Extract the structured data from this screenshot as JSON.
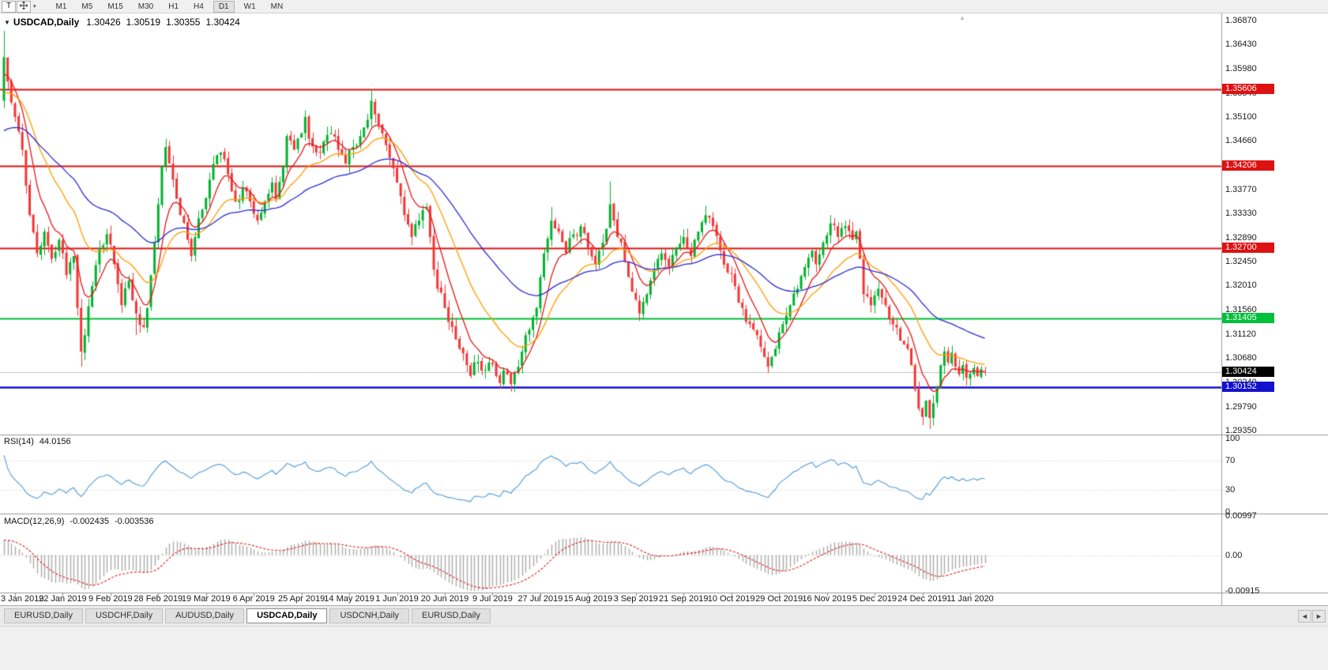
{
  "toolbar": {
    "template_button": "T",
    "timeframes": [
      "M1",
      "M5",
      "M15",
      "M30",
      "H1",
      "H4",
      "D1",
      "W1",
      "MN"
    ],
    "active_timeframe": "D1"
  },
  "icons": {
    "collapse": "▼",
    "dropdown": "▾",
    "shift_marker": "▲",
    "tab_prev": "◄",
    "tab_next": "►"
  },
  "chart": {
    "symbol": "USDCAD,Daily",
    "open": "1.30426",
    "high": "1.30519",
    "low": "1.30355",
    "close": "1.30424",
    "current_price": "1.30424",
    "y_axis_labels": [
      "1.36870",
      "1.36430",
      "1.35980",
      "1.35540",
      "1.35100",
      "1.34660",
      "1.34220",
      "1.33770",
      "1.33330",
      "1.32890",
      "1.32450",
      "1.32010",
      "1.31560",
      "1.31120",
      "1.30680",
      "1.30240",
      "1.29790",
      "1.29350"
    ],
    "levels": [
      {
        "value": "1.35606",
        "v": 1.35606,
        "color": "#dd1212",
        "lw": 1.8
      },
      {
        "value": "1.34206",
        "v": 1.34206,
        "color": "#dd1212",
        "lw": 1.8
      },
      {
        "value": "1.32700",
        "v": 1.327,
        "color": "#dd1212",
        "lw": 1.8
      },
      {
        "value": "1.31405",
        "v": 1.31405,
        "color": "#00c03a",
        "lw": 1.8
      },
      {
        "value": "1.30152",
        "v": 1.30152,
        "color": "#1212cc",
        "lw": 2.6
      }
    ]
  },
  "rsi": {
    "label": "RSI(14)",
    "value": "44.0156",
    "period": 14,
    "range": [
      0,
      100
    ],
    "axis_labels": [
      "100",
      "70",
      "30",
      "0"
    ],
    "dotted_levels": [
      70,
      30
    ]
  },
  "macd": {
    "label": "MACD(12,26,9)",
    "value": "-0.002435",
    "signal": "-0.003536",
    "range": [
      -0.00915,
      0.00997
    ],
    "axis_labels": [
      {
        "text": "0.00997",
        "v": 0.00997
      },
      {
        "text": "0.00",
        "v": 0
      },
      {
        "text": "-0.00915",
        "v": -0.00915
      }
    ]
  },
  "x_axis_dates": [
    "3 Jan 2019",
    "22 Jan 2019",
    "9 Feb 2019",
    "28 Feb 2019",
    "19 Mar 2019",
    "6 Apr 2019",
    "25 Apr 2019",
    "14 May 2019",
    "1 Jun 2019",
    "20 Jun 2019",
    "9 Jul 2019",
    "27 Jul 2019",
    "15 Aug 2019",
    "3 Sep 2019",
    "21 Sep 2019",
    "10 Oct 2019",
    "29 Oct 2019",
    "16 Nov 2019",
    "5 Dec 2019",
    "24 Dec 2019",
    "11 Jan 2020"
  ],
  "tabs": [
    {
      "label": "EURUSD,Daily",
      "active": false
    },
    {
      "label": "USDCHF,Daily",
      "active": false
    },
    {
      "label": "AUDUSD,Daily",
      "active": false
    },
    {
      "label": "USDCAD,Daily",
      "active": true
    },
    {
      "label": "USDCNH,Daily",
      "active": false
    },
    {
      "label": "EURUSD,Daily",
      "active": false
    }
  ],
  "colors": {
    "candle_up": "#00b22d",
    "candle_down": "#f43535",
    "current_price_line": "#c4c4c4",
    "current_badge": "#000000",
    "rsi_line": "#4f9bd8",
    "macd_histogram": "#ababab",
    "macd_signal": "#e02020",
    "panel_border": "#9a9a9a",
    "grid_dotted": "#c8c8c8"
  },
  "chart_data": {
    "type": "candlestick",
    "symbol": "USDCAD",
    "timeframe": "Daily",
    "bars": 268,
    "y_range": {
      "top": 1.37,
      "bottom": 1.29277
    },
    "last_candle": {
      "open": 1.30426,
      "high": 1.30519,
      "low": 1.30355,
      "close": 1.30424
    },
    "horizontal_levels": [
      1.35606,
      1.34206,
      1.327,
      1.31405,
      1.30152
    ],
    "moving_averages": [
      {
        "name": "fast",
        "period": 8,
        "color": "#e81717"
      },
      {
        "name": "medium",
        "period": 21,
        "color": "#ff9c00"
      },
      {
        "name": "slow",
        "period": 50,
        "color": "#2b2bd4"
      }
    ],
    "rsi": {
      "period": 14,
      "current": 44.0156
    },
    "macd": {
      "fast": 12,
      "slow": 26,
      "signal": 9,
      "current_main": -0.002435,
      "current_signal": -0.003536
    },
    "price_anchors": [
      [
        0,
        1.362
      ],
      [
        1,
        1.3575
      ],
      [
        3,
        1.351
      ],
      [
        5,
        1.345
      ],
      [
        7,
        1.333
      ],
      [
        9,
        1.326
      ],
      [
        11,
        1.33
      ],
      [
        13,
        1.325
      ],
      [
        15,
        1.3285
      ],
      [
        17,
        1.322
      ],
      [
        19,
        1.3255
      ],
      [
        20,
        1.316
      ],
      [
        21,
        1.308
      ],
      [
        22,
        1.311
      ],
      [
        24,
        1.32
      ],
      [
        26,
        1.327
      ],
      [
        28,
        1.3295
      ],
      [
        30,
        1.324
      ],
      [
        32,
        1.3165
      ],
      [
        34,
        1.321
      ],
      [
        36,
        1.315
      ],
      [
        38,
        1.3125
      ],
      [
        39,
        1.316
      ],
      [
        40,
        1.322
      ],
      [
        41,
        1.328
      ],
      [
        42,
        1.335
      ],
      [
        43,
        1.342
      ],
      [
        44,
        1.3455
      ],
      [
        45,
        1.3425
      ],
      [
        46,
        1.3395
      ],
      [
        47,
        1.336
      ],
      [
        48,
        1.333
      ],
      [
        50,
        1.3285
      ],
      [
        51,
        1.3255
      ],
      [
        52,
        1.329
      ],
      [
        54,
        1.334
      ],
      [
        56,
        1.3395
      ],
      [
        58,
        1.344
      ],
      [
        59,
        1.3445
      ],
      [
        61,
        1.3405
      ],
      [
        63,
        1.3355
      ],
      [
        65,
        1.338
      ],
      [
        67,
        1.3355
      ],
      [
        69,
        1.332
      ],
      [
        71,
        1.3355
      ],
      [
        73,
        1.339
      ],
      [
        74,
        1.336
      ],
      [
        76,
        1.342
      ],
      [
        77,
        1.3475
      ],
      [
        79,
        1.345
      ],
      [
        81,
        1.348
      ],
      [
        82,
        1.351
      ],
      [
        83,
        1.347
      ],
      [
        85,
        1.3445
      ],
      [
        87,
        1.3465
      ],
      [
        89,
        1.348
      ],
      [
        91,
        1.345
      ],
      [
        93,
        1.3425
      ],
      [
        95,
        1.3455
      ],
      [
        97,
        1.3475
      ],
      [
        99,
        1.3505
      ],
      [
        100,
        1.354
      ],
      [
        101,
        1.3515
      ],
      [
        103,
        1.348
      ],
      [
        105,
        1.3435
      ],
      [
        107,
        1.339
      ],
      [
        109,
        1.333
      ],
      [
        111,
        1.329
      ],
      [
        113,
        1.332
      ],
      [
        115,
        1.3345
      ],
      [
        116,
        1.329
      ],
      [
        117,
        1.323
      ],
      [
        118,
        1.3195
      ],
      [
        120,
        1.316
      ],
      [
        122,
        1.3125
      ],
      [
        124,
        1.3085
      ],
      [
        126,
        1.3055
      ],
      [
        127,
        1.3035
      ],
      [
        128,
        1.306
      ],
      [
        130,
        1.3045
      ],
      [
        132,
        1.306
      ],
      [
        134,
        1.3035
      ],
      [
        135,
        1.3022
      ],
      [
        136,
        1.3045
      ],
      [
        138,
        1.302
      ],
      [
        139,
        1.304
      ],
      [
        141,
        1.308
      ],
      [
        143,
        1.312
      ],
      [
        145,
        1.316
      ],
      [
        147,
        1.326
      ],
      [
        149,
        1.332
      ],
      [
        151,
        1.33
      ],
      [
        153,
        1.326
      ],
      [
        155,
        1.3295
      ],
      [
        157,
        1.331
      ],
      [
        159,
        1.327
      ],
      [
        161,
        1.324
      ],
      [
        163,
        1.328
      ],
      [
        165,
        1.335
      ],
      [
        166,
        1.332
      ],
      [
        168,
        1.328
      ],
      [
        169,
        1.3245
      ],
      [
        171,
        1.319
      ],
      [
        173,
        1.315
      ],
      [
        175,
        1.3185
      ],
      [
        177,
        1.323
      ],
      [
        179,
        1.326
      ],
      [
        181,
        1.3235
      ],
      [
        183,
        1.327
      ],
      [
        185,
        1.329
      ],
      [
        187,
        1.3255
      ],
      [
        189,
        1.33
      ],
      [
        191,
        1.333
      ],
      [
        193,
        1.331
      ],
      [
        195,
        1.3265
      ],
      [
        197,
        1.3225
      ],
      [
        199,
        1.32
      ],
      [
        201,
        1.316
      ],
      [
        203,
        1.313
      ],
      [
        205,
        1.311
      ],
      [
        207,
        1.307
      ],
      [
        208,
        1.3052
      ],
      [
        210,
        1.3085
      ],
      [
        212,
        1.313
      ],
      [
        214,
        1.3165
      ],
      [
        216,
        1.3195
      ],
      [
        218,
        1.3235
      ],
      [
        220,
        1.3265
      ],
      [
        221,
        1.324
      ],
      [
        223,
        1.328
      ],
      [
        225,
        1.3315
      ],
      [
        227,
        1.329
      ],
      [
        229,
        1.331
      ],
      [
        231,
        1.3285
      ],
      [
        232,
        1.33
      ],
      [
        233,
        1.325
      ],
      [
        234,
        1.3185
      ],
      [
        236,
        1.3165
      ],
      [
        238,
        1.3195
      ],
      [
        240,
        1.3165
      ],
      [
        242,
        1.313
      ],
      [
        244,
        1.31
      ],
      [
        246,
        1.3085
      ],
      [
        247,
        1.3055
      ],
      [
        248,
        1.301
      ],
      [
        249,
        1.2975
      ],
      [
        250,
        1.296
      ],
      [
        251,
        1.299
      ],
      [
        252,
        1.2958
      ],
      [
        253,
        1.2985
      ],
      [
        254,
        1.3015
      ],
      [
        255,
        1.3055
      ],
      [
        256,
        1.308
      ],
      [
        257,
        1.306
      ],
      [
        258,
        1.3078
      ],
      [
        259,
        1.3052
      ],
      [
        260,
        1.3038
      ],
      [
        261,
        1.3055
      ],
      [
        262,
        1.3032
      ],
      [
        264,
        1.305
      ],
      [
        265,
        1.3035
      ],
      [
        266,
        1.3048
      ],
      [
        267,
        1.30424
      ]
    ],
    "wick_highs": [
      [
        0,
        1.3668
      ],
      [
        44,
        1.347
      ],
      [
        82,
        1.3522
      ],
      [
        100,
        1.3561
      ],
      [
        149,
        1.3345
      ],
      [
        165,
        1.3392
      ],
      [
        191,
        1.3347
      ],
      [
        225,
        1.333
      ]
    ],
    "wick_lows": [
      [
        21,
        1.3052
      ],
      [
        36,
        1.311
      ],
      [
        135,
        1.3012
      ],
      [
        138,
        1.3008
      ],
      [
        173,
        1.3136
      ],
      [
        208,
        1.3042
      ],
      [
        250,
        1.2945
      ],
      [
        252,
        1.2938
      ]
    ]
  }
}
